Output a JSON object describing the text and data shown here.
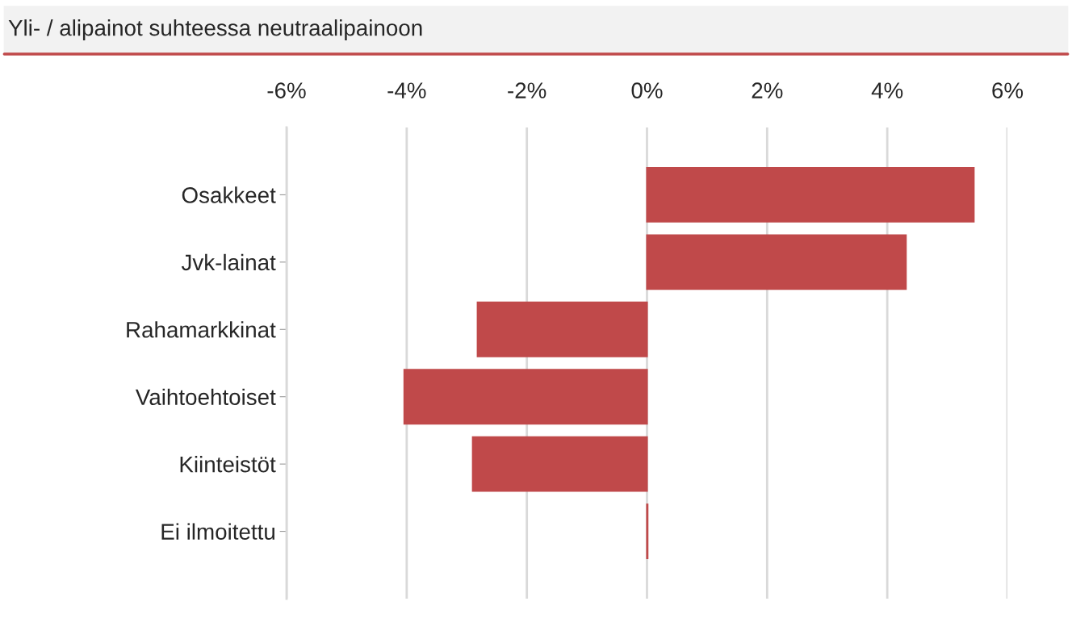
{
  "chart_data": {
    "type": "bar",
    "orientation": "horizontal",
    "title": "Yli- / alipainot suhteessa neutraalipainoon",
    "categories": [
      "Osakkeet",
      "Jvk-lainat",
      "Rahamarkkinat",
      "Vaihtoehtoiset",
      "Kiinteistöt",
      "Ei ilmoitettu"
    ],
    "values": [
      5.44,
      4.31,
      -2.82,
      -4.04,
      -2.9,
      0.01
    ],
    "color": "#c0494a",
    "xlim": [
      -6,
      6
    ],
    "xticks": [
      {
        "value": -6,
        "label": "-6%"
      },
      {
        "value": -4,
        "label": "-4%"
      },
      {
        "value": -2,
        "label": "-2%"
      },
      {
        "value": 0,
        "label": "0%"
      },
      {
        "value": 2,
        "label": "2%"
      },
      {
        "value": 4,
        "label": "4%"
      },
      {
        "value": 6,
        "label": "6%"
      }
    ],
    "grid": "x"
  }
}
